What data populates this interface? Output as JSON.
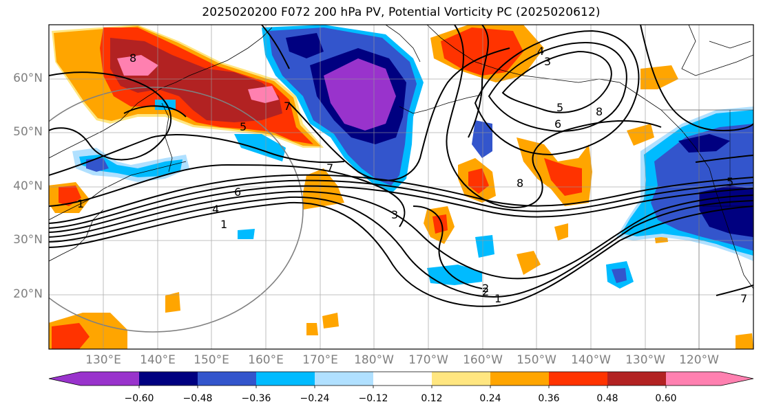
{
  "title": "2025020200 F072 200 hPa PV, Potential Vorticity PC (2025020612)",
  "latitude_labels": [
    "60°N",
    "50°N",
    "40°N",
    "30°N",
    "20°N"
  ],
  "longitude_labels": [
    "130°E",
    "140°E",
    "150°E",
    "160°E",
    "170°E",
    "180°W",
    "170°W",
    "160°W",
    "150°W",
    "140°W",
    "130°W",
    "120°W"
  ],
  "colorbar": {
    "tick_labels": [
      "−0.60",
      "−0.48",
      "−0.36",
      "−0.24",
      "−0.12",
      "0.12",
      "0.24",
      "0.36",
      "0.48",
      "0.60"
    ],
    "colors": [
      "#9933cc",
      "#000080",
      "#3355cc",
      "#00bbff",
      "#b0e0ff",
      "#ffffff",
      "#ffe680",
      "#ffa500",
      "#ff3300",
      "#b22222",
      "#ff80b0"
    ]
  },
  "contour_labels": [
    "8",
    "7",
    "6",
    "4",
    "3",
    "2",
    "1",
    "5",
    "6",
    "8",
    "7",
    "4",
    "3",
    "5",
    "8",
    "1",
    "2",
    "5",
    "7",
    "1"
  ]
}
